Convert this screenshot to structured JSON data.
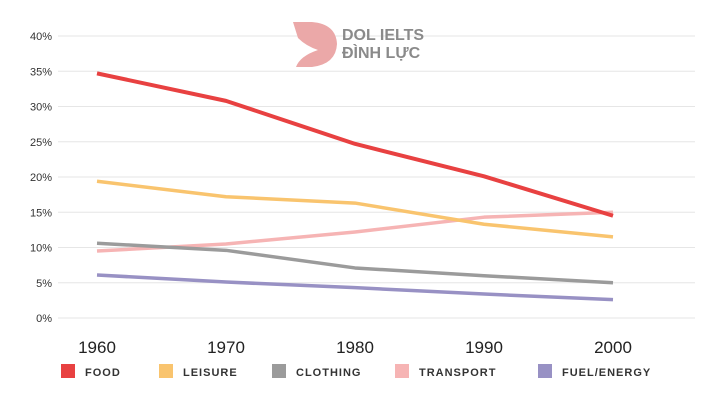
{
  "logo": {
    "line1": "DOL IELTS",
    "line2": "ĐÌNH LỰC",
    "color": "#eba8a8"
  },
  "chart_data": {
    "type": "line",
    "title": "",
    "xlabel": "",
    "ylabel": "",
    "x": [
      1960,
      1970,
      1980,
      1990,
      2000
    ],
    "x_tick_labels": [
      "1960",
      "1970",
      "1980",
      "1990",
      "2000"
    ],
    "ylim": [
      0,
      40
    ],
    "y_ticks": [
      0,
      5,
      10,
      15,
      20,
      25,
      30,
      35,
      40
    ],
    "y_tick_labels": [
      "0%",
      "5%",
      "10%",
      "15%",
      "20%",
      "25%",
      "30%",
      "35%",
      "40%"
    ],
    "grid": true,
    "legend_position": "bottom",
    "series": [
      {
        "name": "FOOD",
        "color": "#e84141",
        "values": [
          34.7,
          30.8,
          24.7,
          20.1,
          14.5
        ]
      },
      {
        "name": "LEISURE",
        "color": "#f9c46e",
        "values": [
          19.4,
          17.2,
          16.3,
          13.3,
          11.5
        ]
      },
      {
        "name": "CLOTHING",
        "color": "#9b9b9b",
        "values": [
          10.6,
          9.6,
          7.1,
          6.0,
          5.0
        ]
      },
      {
        "name": "TRANSPORT",
        "color": "#f6b4b4",
        "values": [
          9.5,
          10.5,
          12.2,
          14.3,
          15.0
        ]
      },
      {
        "name": "FUEL/ENERGY",
        "color": "#9891c4",
        "values": [
          6.1,
          5.1,
          4.3,
          3.4,
          2.6
        ]
      }
    ]
  }
}
